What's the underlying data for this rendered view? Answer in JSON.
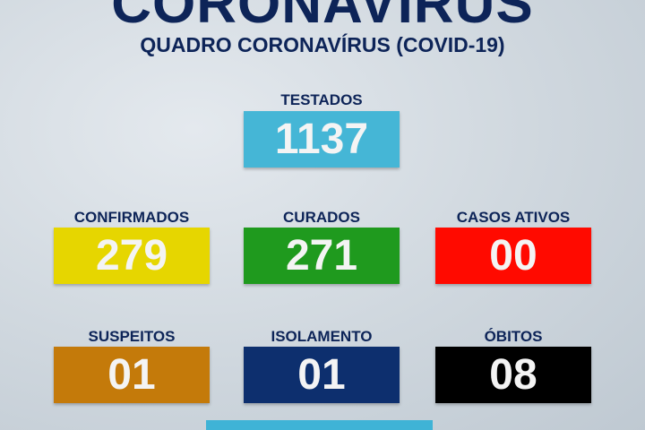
{
  "header": {
    "title": "CORONAVIRUS",
    "subtitle": "QUADRO CORONAVÍRUS (COVID-19)"
  },
  "stats": [
    {
      "label": "TESTADOS",
      "value": "1137",
      "color": "#45b6d6"
    },
    {
      "label": "CONFIRMADOS",
      "value": "279",
      "color": "#e6d600"
    },
    {
      "label": "CURADOS",
      "value": "271",
      "color": "#1f9a1e"
    },
    {
      "label": "CASOS ATIVOS",
      "value": "00",
      "color": "#ff0a00"
    },
    {
      "label": "SUSPEITOS",
      "value": "01",
      "color": "#c47a0a"
    },
    {
      "label": "ISOLAMENTO",
      "value": "01",
      "color": "#0d2f6e"
    },
    {
      "label": "ÓBITOS",
      "value": "08",
      "color": "#000000"
    }
  ]
}
